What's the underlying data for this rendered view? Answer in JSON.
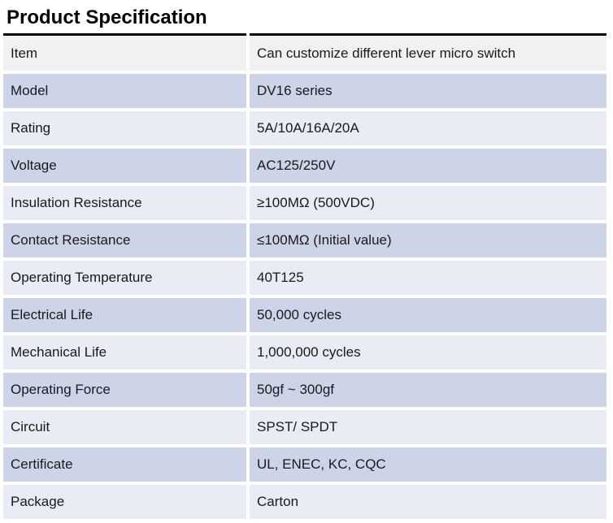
{
  "title": "Product Specification",
  "colors": {
    "border": "#000000",
    "text": "#1a1a1a",
    "header_row_bg": "#f1f1f1",
    "row_dark_bg": "#ced4e8",
    "row_light_bg": "#e9ebf5",
    "page_bg": "#ffffff"
  },
  "table": {
    "rows": [
      {
        "label": "Item",
        "value": "Can customize different lever micro switch"
      },
      {
        "label": "Model",
        "value": "DV16 series"
      },
      {
        "label": "Rating",
        "value": "5A/10A/16A/20A"
      },
      {
        "label": "Voltage",
        "value": "AC125/250V"
      },
      {
        "label": "Insulation Resistance",
        "value": "≥100MΩ (500VDC)"
      },
      {
        "label": "Contact Resistance",
        "value": "≤100MΩ (Initial value)"
      },
      {
        "label": "Operating Temperature",
        "value": "40T125"
      },
      {
        "label": "Electrical Life",
        "value": "50,000 cycles"
      },
      {
        "label": "Mechanical Life",
        "value": "1,000,000 cycles"
      },
      {
        "label": "Operating Force",
        "value": "50gf ~ 300gf"
      },
      {
        "label": "Circuit",
        "value": "SPST/ SPDT"
      },
      {
        "label": "Certificate",
        "value": "UL, ENEC, KC, CQC"
      },
      {
        "label": "Package",
        "value": "Carton"
      }
    ]
  }
}
